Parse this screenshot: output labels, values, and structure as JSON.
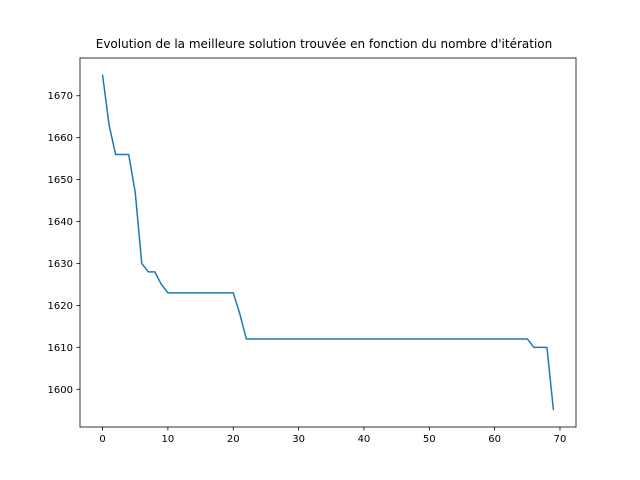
{
  "chart_data": {
    "type": "line",
    "title": "Evolution de la meilleure solution trouvée en fonction du nombre d'itération",
    "xlabel": "",
    "ylabel": "",
    "xlim": [
      -3.45,
      72.45
    ],
    "ylim": [
      1591,
      1679
    ],
    "xticks": [
      0,
      10,
      20,
      30,
      40,
      50,
      60,
      70
    ],
    "yticks": [
      1600,
      1610,
      1620,
      1630,
      1640,
      1650,
      1660,
      1670
    ],
    "grid": false,
    "colors": {
      "line": "#1f77b4"
    },
    "series": [
      {
        "x": [
          0,
          1,
          2,
          3,
          4,
          5,
          6,
          7,
          8,
          9,
          10,
          11,
          12,
          13,
          14,
          15,
          16,
          17,
          18,
          19,
          20,
          21,
          22,
          23,
          24,
          25,
          26,
          27,
          28,
          29,
          30,
          31,
          32,
          33,
          34,
          35,
          36,
          37,
          38,
          39,
          40,
          41,
          42,
          43,
          44,
          45,
          46,
          47,
          48,
          49,
          50,
          51,
          52,
          53,
          54,
          55,
          56,
          57,
          58,
          59,
          60,
          61,
          62,
          63,
          64,
          65,
          66,
          67,
          68,
          69
        ],
        "y": [
          1675,
          1663,
          1656,
          1656,
          1656,
          1647,
          1630,
          1628,
          1628,
          1625,
          1623,
          1623,
          1623,
          1623,
          1623,
          1623,
          1623,
          1623,
          1623,
          1623,
          1623,
          1618,
          1612,
          1612,
          1612,
          1612,
          1612,
          1612,
          1612,
          1612,
          1612,
          1612,
          1612,
          1612,
          1612,
          1612,
          1612,
          1612,
          1612,
          1612,
          1612,
          1612,
          1612,
          1612,
          1612,
          1612,
          1612,
          1612,
          1612,
          1612,
          1612,
          1612,
          1612,
          1612,
          1612,
          1612,
          1612,
          1612,
          1612,
          1612,
          1612,
          1612,
          1612,
          1612,
          1612,
          1612,
          1610,
          1610,
          1610,
          1595
        ]
      }
    ]
  }
}
